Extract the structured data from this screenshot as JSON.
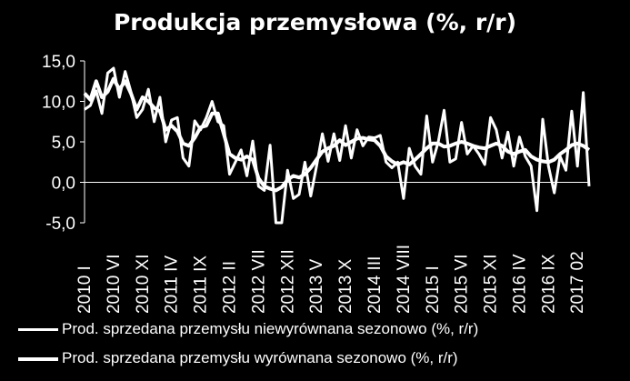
{
  "chart_data": {
    "type": "line",
    "title": "Produkcja przemysłowa (%, r/r)",
    "ylim": [
      -5,
      15
    ],
    "yticks": [
      "15,0",
      "10,0",
      "5,0",
      "0,0",
      "-5,0"
    ],
    "ytick_values": [
      15,
      10,
      5,
      0,
      -5
    ],
    "xtick_labels": [
      "2010 I",
      "2010 VI",
      "2010 XI",
      "2011 IV",
      "2011 IX",
      "2012 II",
      "2012 VII",
      "2012 XII",
      "2013 V",
      "2013 X",
      "2014 III",
      "2014 VIII",
      "2015 I",
      "2015 VI",
      "2015 XI",
      "2016 IV",
      "2016 IX",
      "2017 02"
    ],
    "xtick_index": [
      0,
      5,
      10,
      15,
      20,
      25,
      30,
      35,
      40,
      45,
      50,
      55,
      60,
      65,
      70,
      75,
      80,
      85
    ],
    "grid": false,
    "legend_position": "bottom",
    "series": [
      {
        "name": "Prod. sprzedana przemysłu niewyrównana sezonowo (%, r/r)",
        "color": "#ffffff",
        "values": [
          9.0,
          9.5,
          11.3,
          8.5,
          13.5,
          14.1,
          10.5,
          13.7,
          11.2,
          8.0,
          9.0,
          11.5,
          7.5,
          10.5,
          5.0,
          7.7,
          8.0,
          3.0,
          2.0,
          7.6,
          6.5,
          8.0,
          10.0,
          7.5,
          7.0,
          1.0,
          2.5,
          4.0,
          0.8,
          5.1,
          -0.5,
          -1.0,
          4.6,
          -5.0,
          -5.0,
          1.5,
          -2.0,
          -1.5,
          2.5,
          -1.7,
          2.0,
          6.0,
          2.6,
          6.0,
          2.7,
          7.0,
          3.0,
          6.5,
          4.5,
          5.6,
          5.5,
          5.8,
          2.5,
          1.8,
          2.5,
          -2.0,
          4.2,
          2.0,
          1.0,
          8.2,
          2.5,
          5.0,
          8.9,
          2.5,
          2.9,
          7.4,
          3.5,
          4.5,
          3.5,
          2.2,
          8.0,
          6.5,
          3.0,
          6.2,
          2.0,
          5.6,
          3.2,
          2.0,
          -3.5,
          7.8,
          2.0,
          -1.3,
          3.2,
          1.5,
          8.8,
          2.0,
          11.1,
          -0.5
        ]
      },
      {
        "name": "Prod. sprzedana przemysłu wyrównana sezonowo (%, r/r)",
        "color": "#ffffff",
        "values": [
          11.0,
          10.2,
          12.5,
          10.5,
          11.2,
          12.8,
          11.5,
          12.5,
          11.0,
          9.0,
          10.5,
          10.0,
          9.2,
          8.8,
          6.5,
          7.0,
          6.3,
          4.8,
          4.5,
          5.5,
          6.8,
          7.0,
          8.5,
          8.5,
          6.0,
          3.5,
          3.0,
          2.8,
          3.2,
          2.8,
          0.5,
          -0.5,
          -0.8,
          -1.0,
          -0.6,
          0.3,
          0.8,
          0.6,
          1.0,
          1.8,
          2.8,
          3.8,
          4.2,
          4.5,
          5.2,
          4.6,
          5.0,
          5.4,
          5.5,
          5.3,
          5.2,
          4.5,
          3.2,
          2.6,
          2.2,
          2.5,
          2.2,
          2.8,
          3.5,
          4.2,
          4.8,
          4.8,
          4.4,
          4.5,
          4.8,
          5.0,
          4.8,
          4.5,
          4.3,
          4.2,
          4.5,
          4.8,
          4.5,
          3.8,
          3.5,
          3.8,
          4.0,
          3.2,
          2.8,
          2.6,
          2.5,
          2.8,
          3.5,
          4.0,
          4.6,
          4.8,
          4.5,
          4.0
        ]
      }
    ]
  }
}
